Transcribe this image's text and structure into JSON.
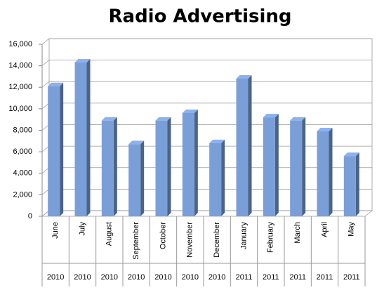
{
  "chart_data": {
    "type": "bar3d",
    "title": "Radio Advertising",
    "categories": [
      "June",
      "July",
      "August",
      "September",
      "October",
      "November",
      "December",
      "January",
      "February",
      "March",
      "April",
      "May"
    ],
    "category_groups": [
      "2010",
      "2010",
      "2010",
      "2010",
      "2010",
      "2010",
      "2010",
      "2011",
      "2011",
      "2011",
      "2011",
      "2011"
    ],
    "values": [
      12100,
      14300,
      8900,
      6700,
      8900,
      9600,
      6800,
      12800,
      9200,
      8900,
      7900,
      5600
    ],
    "color": "#7a9fd8",
    "ylim": [
      0,
      16000
    ],
    "yticks": [
      0,
      {
        "value": 2000,
        "label": "2,000"
      },
      {
        "value": 4000,
        "label": "4,000"
      },
      {
        "value": 6000,
        "label": "6,000"
      },
      {
        "value": 8000,
        "label": "8,000"
      },
      {
        "value": 10000,
        "label": "10,000"
      },
      {
        "value": 12000,
        "label": "12,000"
      },
      {
        "value": 14000,
        "label": "14,000"
      },
      {
        "value": 16000,
        "label": "16,000"
      }
    ],
    "grid": true
  }
}
